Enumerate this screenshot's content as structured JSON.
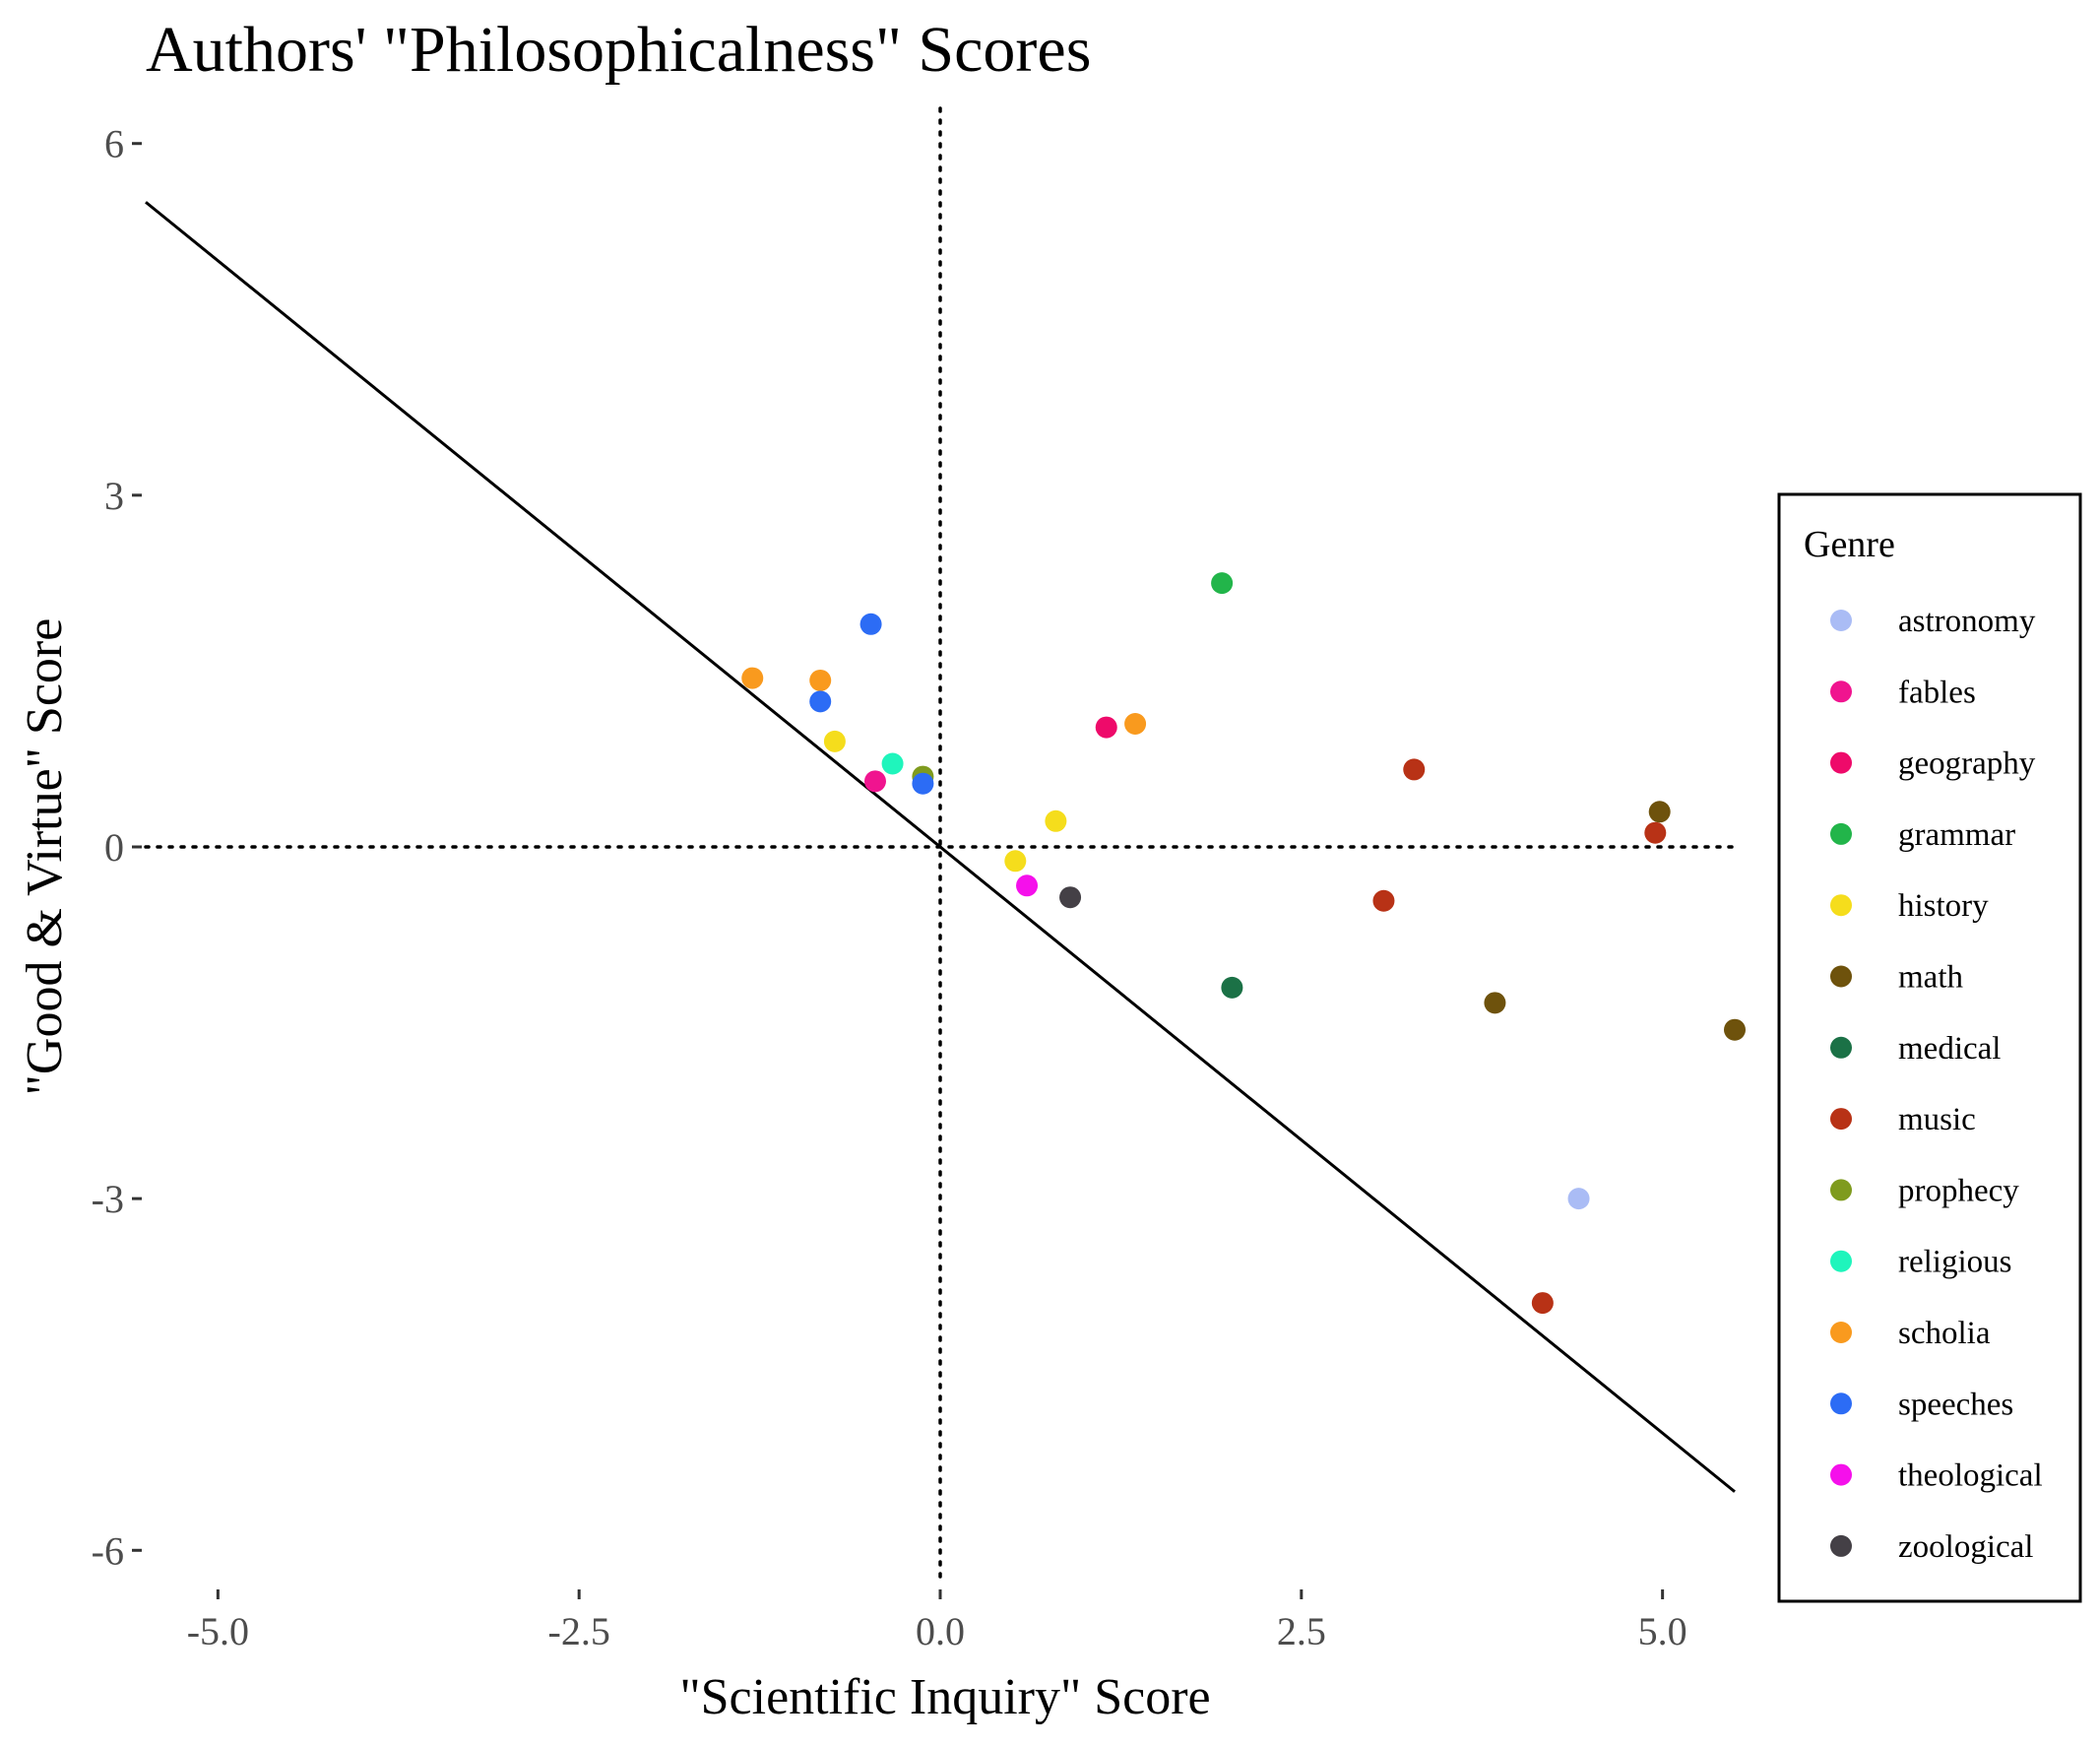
{
  "chart_data": {
    "type": "scatter",
    "title": "Authors' \"Philosophicalness\" Scores",
    "xlabel": "\"Scientific Inquiry\" Score",
    "ylabel": "\"Good & Virtue\" Score",
    "xlim": [
      -5.5,
      5.5
    ],
    "ylim": [
      -6.3,
      6.3
    ],
    "x_ticks": [
      -5.0,
      -2.5,
      0.0,
      2.5,
      5.0
    ],
    "x_tick_labels": [
      "-5.0",
      "-2.5",
      "0.0",
      "2.5",
      "5.0"
    ],
    "y_ticks": [
      -6,
      -3,
      0,
      3,
      6
    ],
    "y_tick_labels": [
      "-6",
      "-3",
      "0",
      "3",
      "6"
    ],
    "reference_lines": {
      "x": 0,
      "y": 0,
      "style": "dotted"
    },
    "fit_line": {
      "x": [
        -5.5,
        5.5
      ],
      "y": [
        5.5,
        -5.5
      ]
    },
    "grid": false,
    "legend": {
      "title": "Genre",
      "placement": "right",
      "entries": [
        {
          "name": "astronomy",
          "color": "#aabcf5"
        },
        {
          "name": "fables",
          "color": "#f0148f"
        },
        {
          "name": "geography",
          "color": "#ee0a6a"
        },
        {
          "name": "grammar",
          "color": "#22b54a"
        },
        {
          "name": "history",
          "color": "#f5dd1c"
        },
        {
          "name": "math",
          "color": "#6e520c"
        },
        {
          "name": "medical",
          "color": "#1b7146"
        },
        {
          "name": "music",
          "color": "#b83216"
        },
        {
          "name": "prophecy",
          "color": "#7f9b1e"
        },
        {
          "name": "religious",
          "color": "#1ff5bc"
        },
        {
          "name": "scholia",
          "color": "#f99a1e"
        },
        {
          "name": "speeches",
          "color": "#2c6cf5"
        },
        {
          "name": "theological",
          "color": "#f510eb"
        },
        {
          "name": "zoological",
          "color": "#444046"
        }
      ]
    },
    "points": [
      {
        "genre": "grammar",
        "x": 1.95,
        "y": 2.25
      },
      {
        "genre": "speeches",
        "x": -0.48,
        "y": 1.9
      },
      {
        "genre": "scholia",
        "x": -1.3,
        "y": 1.44
      },
      {
        "genre": "scholia",
        "x": -0.83,
        "y": 1.42
      },
      {
        "genre": "speeches",
        "x": -0.83,
        "y": 1.24
      },
      {
        "genre": "history",
        "x": -0.73,
        "y": 0.9
      },
      {
        "genre": "geography",
        "x": 1.15,
        "y": 1.02
      },
      {
        "genre": "scholia",
        "x": 1.35,
        "y": 1.05
      },
      {
        "genre": "religious",
        "x": -0.33,
        "y": 0.71
      },
      {
        "genre": "prophecy",
        "x": -0.12,
        "y": 0.6
      },
      {
        "genre": "speeches",
        "x": -0.12,
        "y": 0.54
      },
      {
        "genre": "fables",
        "x": -0.45,
        "y": 0.56
      },
      {
        "genre": "music",
        "x": 3.28,
        "y": 0.66
      },
      {
        "genre": "history",
        "x": 0.8,
        "y": 0.22
      },
      {
        "genre": "math",
        "x": 4.98,
        "y": 0.3
      },
      {
        "genre": "music",
        "x": 4.95,
        "y": 0.12
      },
      {
        "genre": "history",
        "x": 0.52,
        "y": -0.12
      },
      {
        "genre": "theological",
        "x": 0.6,
        "y": -0.33
      },
      {
        "genre": "zoological",
        "x": 0.9,
        "y": -0.43
      },
      {
        "genre": "music",
        "x": 3.07,
        "y": -0.46
      },
      {
        "genre": "medical",
        "x": 2.02,
        "y": -1.2
      },
      {
        "genre": "math",
        "x": 3.84,
        "y": -1.33
      },
      {
        "genre": "math",
        "x": 5.5,
        "y": -1.56
      },
      {
        "genre": "astronomy",
        "x": 4.42,
        "y": -3.0
      },
      {
        "genre": "music",
        "x": 4.17,
        "y": -3.89
      }
    ]
  }
}
